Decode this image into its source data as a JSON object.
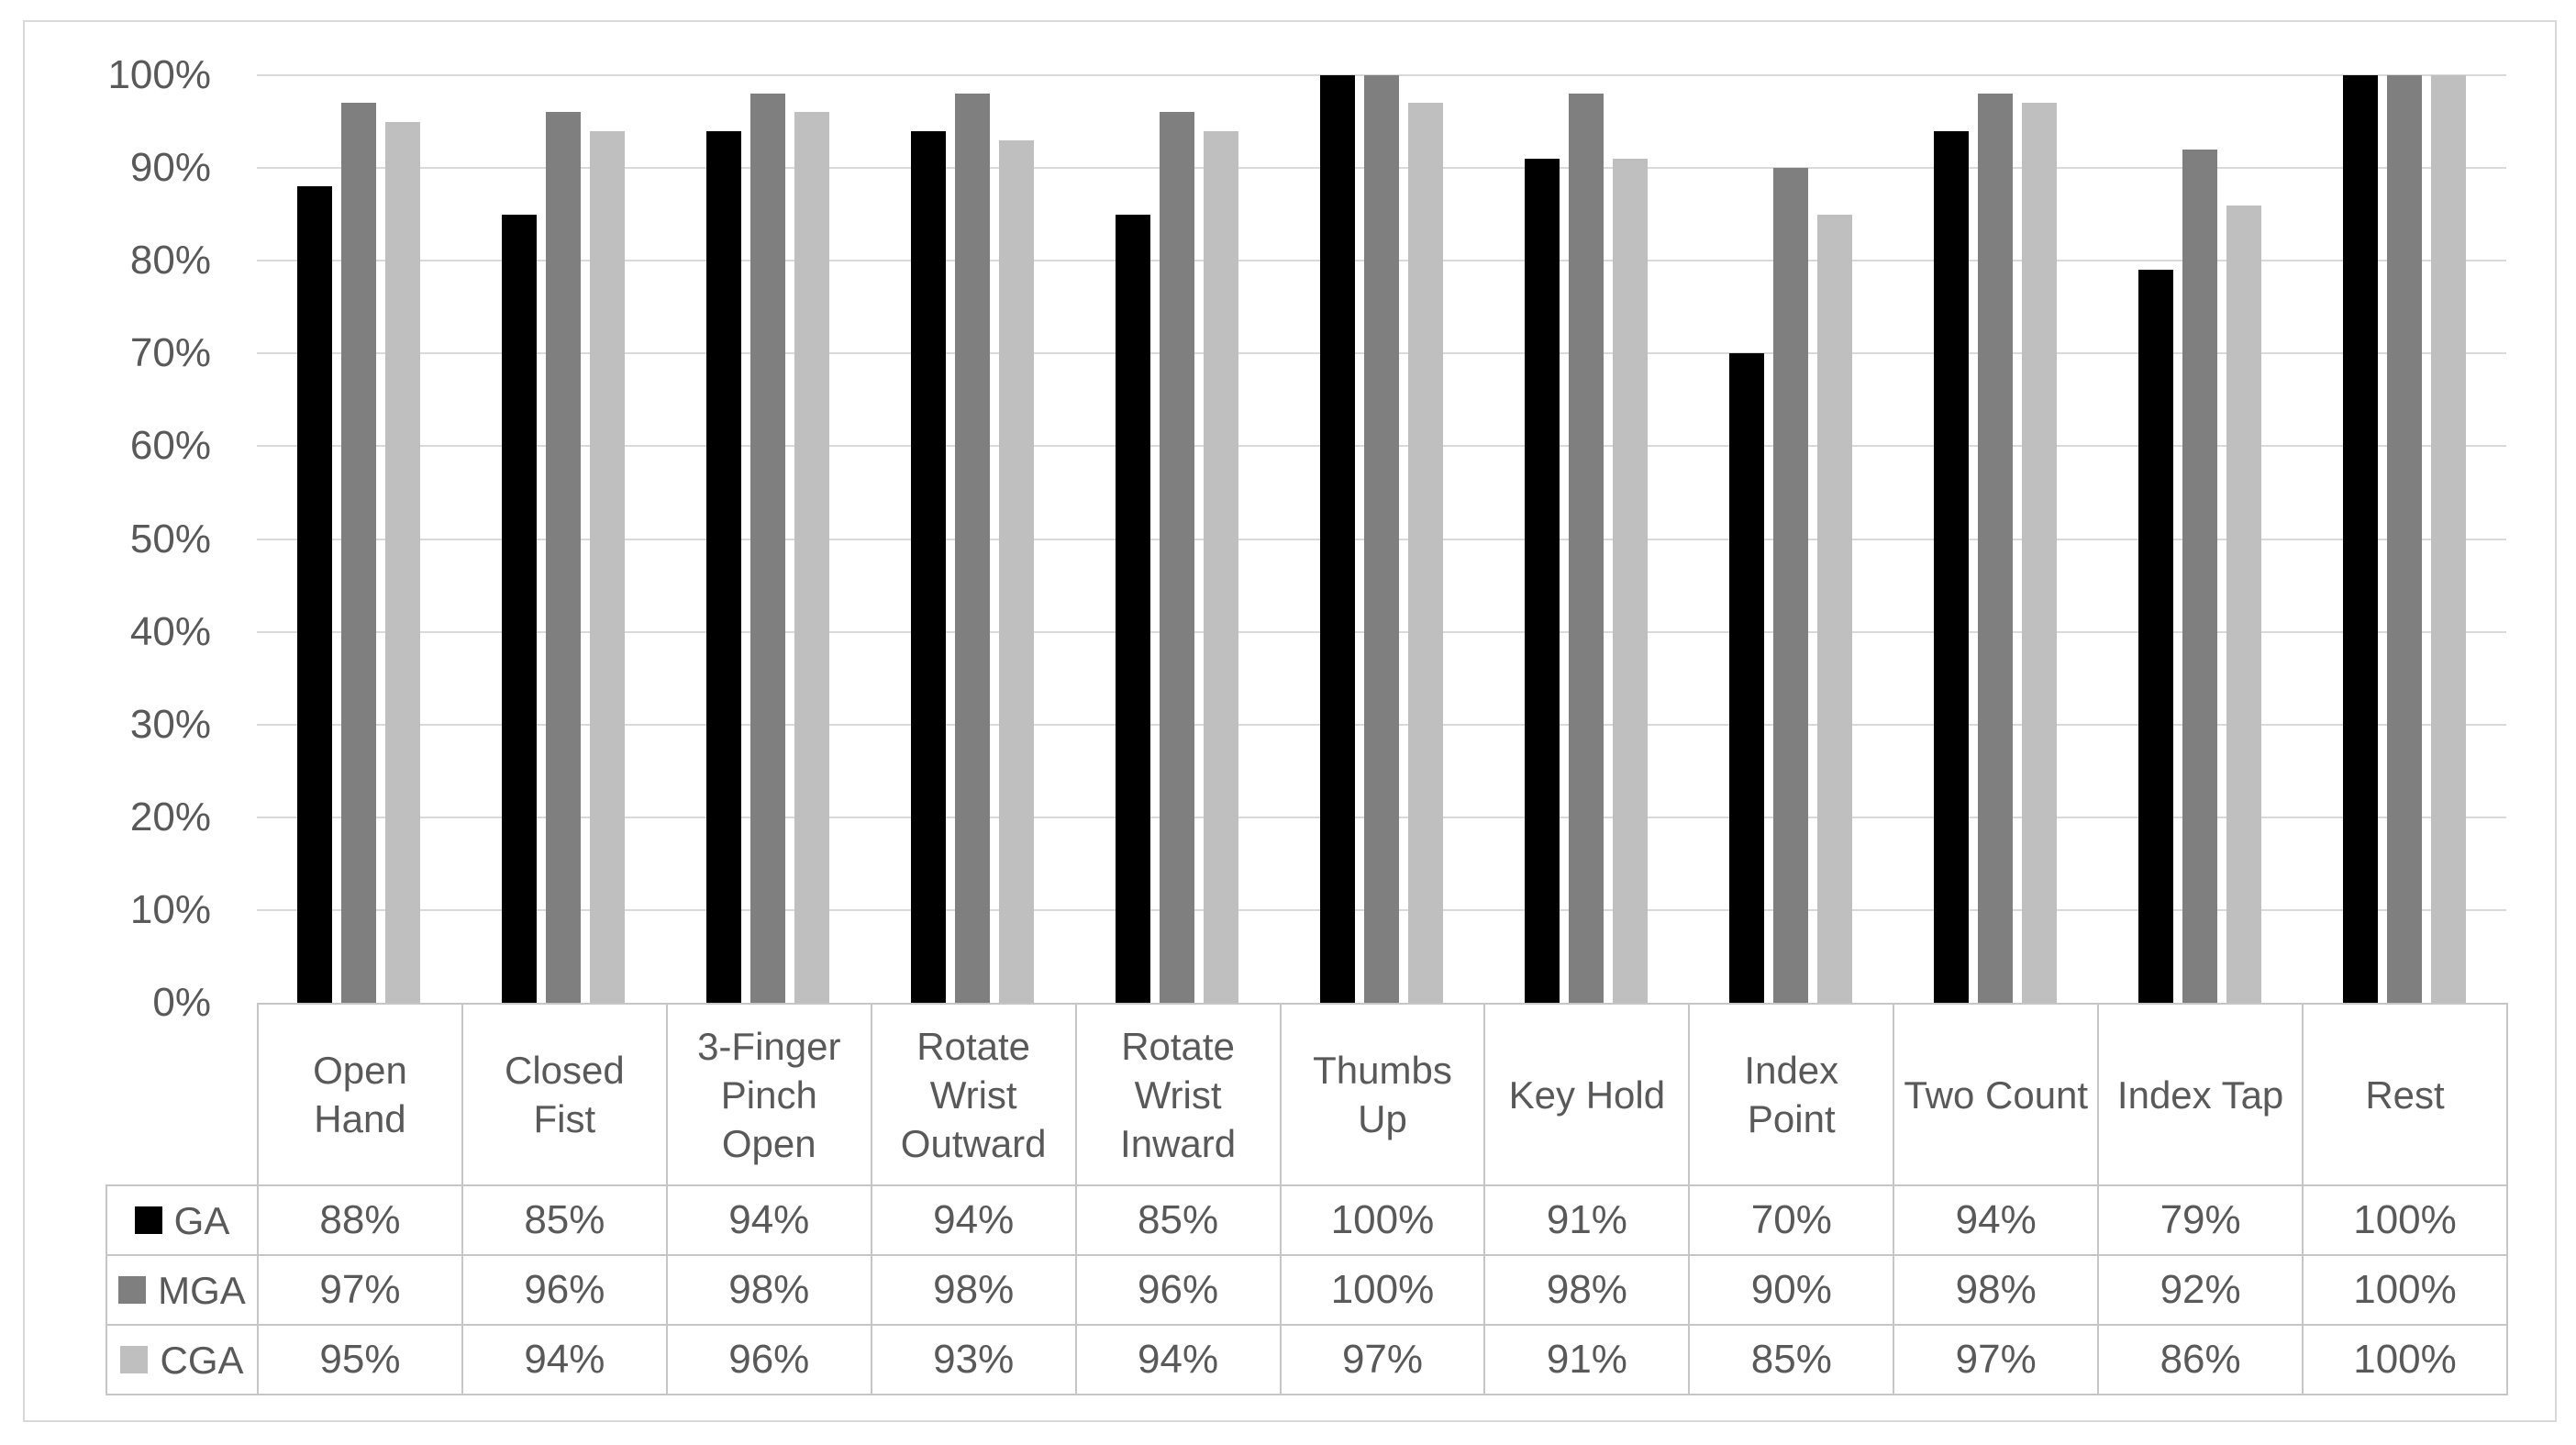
{
  "figure": {
    "background": "#FFFFFF",
    "border_color": "#D9D9D9"
  },
  "styles": {
    "gridline_color": "#D9D9D9",
    "table_border_color": "#C6C6C6",
    "text_color": "#595959"
  },
  "chart_data": {
    "type": "bar",
    "title": "",
    "xlabel": "",
    "ylabel": "",
    "grid": true,
    "legend_position": "data-table-left",
    "data_table_shown": true,
    "categories": [
      "Open Hand",
      "Closed Fist",
      "3-Finger Pinch Open",
      "Rotate Wrist Outward",
      "Rotate Wrist Inward",
      "Thumbs Up",
      "Key Hold",
      "Index Point",
      "Two Count",
      "Index Tap",
      "Rest"
    ],
    "category_label_lines": [
      [
        "Open",
        "Hand"
      ],
      [
        "Closed",
        "Fist"
      ],
      [
        "3-Finger",
        "Pinch",
        "Open"
      ],
      [
        "Rotate",
        "Wrist",
        "Outward"
      ],
      [
        "Rotate",
        "Wrist",
        "Inward"
      ],
      [
        "Thumbs",
        "Up"
      ],
      [
        "Key Hold"
      ],
      [
        "Index",
        "Point"
      ],
      [
        "Two Count"
      ],
      [
        "Index Tap"
      ],
      [
        "Rest"
      ]
    ],
    "series": [
      {
        "name": "GA",
        "color": "#000000",
        "values": [
          88,
          85,
          94,
          94,
          85,
          100,
          91,
          70,
          94,
          79,
          100
        ],
        "display": [
          "88%",
          "85%",
          "94%",
          "94%",
          "85%",
          "100%",
          "91%",
          "70%",
          "94%",
          "79%",
          "100%"
        ]
      },
      {
        "name": "MGA",
        "color": "#7F7F7F",
        "values": [
          97,
          96,
          98,
          98,
          96,
          100,
          98,
          90,
          98,
          92,
          100
        ],
        "display": [
          "97%",
          "96%",
          "98%",
          "98%",
          "96%",
          "100%",
          "98%",
          "90%",
          "98%",
          "92%",
          "100%"
        ]
      },
      {
        "name": "CGA",
        "color": "#BFBFBF",
        "values": [
          95,
          94,
          96,
          93,
          94,
          97,
          91,
          85,
          97,
          86,
          100
        ],
        "display": [
          "95%",
          "94%",
          "96%",
          "93%",
          "94%",
          "97%",
          "91%",
          "85%",
          "97%",
          "86%",
          "100%"
        ]
      }
    ],
    "y_axis": {
      "min": 0,
      "max": 100,
      "step": 10,
      "format": "percent",
      "tick_labels": [
        "100%",
        "90%",
        "80%",
        "70%",
        "60%",
        "50%",
        "40%",
        "30%",
        "20%",
        "10%",
        "0%"
      ]
    }
  }
}
